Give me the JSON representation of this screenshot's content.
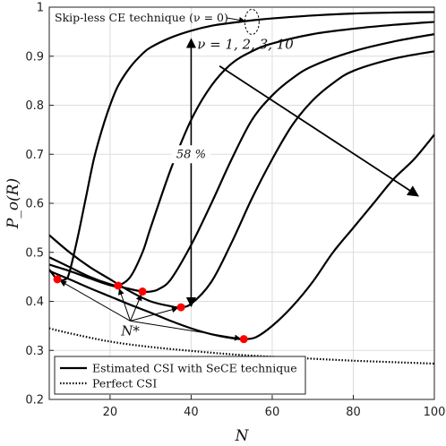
{
  "chart_data": {
    "type": "line",
    "xlabel": "N",
    "ylabel": "P_o(R)",
    "xlim": [
      5,
      100
    ],
    "ylim": [
      0.2,
      1.0
    ],
    "xticks": [
      20,
      40,
      60,
      80,
      100
    ],
    "yticks": [
      0.2,
      0.3,
      0.4,
      0.5,
      0.6,
      0.7,
      0.8,
      0.9,
      1.0
    ],
    "grid": true,
    "legend_position": "bottom-left",
    "series": [
      {
        "style": "solid",
        "x": [
          5,
          7,
          9,
          10,
          12,
          14,
          16,
          18,
          20,
          22,
          25,
          28,
          30,
          35,
          40,
          45,
          50,
          55,
          60,
          70,
          80,
          90,
          100
        ],
        "y": [
          0.465,
          0.445,
          0.445,
          0.46,
          0.53,
          0.61,
          0.69,
          0.75,
          0.8,
          0.84,
          0.878,
          0.905,
          0.918,
          0.938,
          0.952,
          0.962,
          0.968,
          0.973,
          0.977,
          0.983,
          0.987,
          0.989,
          0.99
        ]
      },
      {
        "style": "solid",
        "x": [
          5,
          10,
          15,
          20,
          22,
          25,
          28,
          30,
          35,
          40,
          45,
          50,
          55,
          60,
          70,
          80,
          90,
          100
        ],
        "y": [
          0.475,
          0.462,
          0.447,
          0.433,
          0.432,
          0.45,
          0.5,
          0.55,
          0.67,
          0.77,
          0.84,
          0.885,
          0.91,
          0.926,
          0.945,
          0.956,
          0.964,
          0.97
        ]
      },
      {
        "style": "solid",
        "x": [
          5,
          10,
          15,
          20,
          25,
          28,
          30,
          32,
          35,
          40,
          45,
          50,
          55,
          60,
          65,
          70,
          80,
          90,
          100
        ],
        "y": [
          0.49,
          0.47,
          0.45,
          0.435,
          0.425,
          0.42,
          0.42,
          0.425,
          0.445,
          0.515,
          0.6,
          0.69,
          0.77,
          0.82,
          0.855,
          0.88,
          0.91,
          0.93,
          0.945
        ]
      },
      {
        "style": "solid",
        "x": [
          5,
          10,
          15,
          20,
          25,
          30,
          35,
          37,
          40,
          45,
          50,
          55,
          60,
          65,
          70,
          75,
          80,
          90,
          100
        ],
        "y": [
          0.535,
          0.5,
          0.47,
          0.445,
          0.42,
          0.4,
          0.39,
          0.388,
          0.395,
          0.44,
          0.52,
          0.61,
          0.69,
          0.76,
          0.81,
          0.845,
          0.87,
          0.895,
          0.91
        ]
      },
      {
        "style": "solid",
        "x": [
          5,
          10,
          15,
          20,
          25,
          30,
          35,
          40,
          45,
          50,
          53,
          56,
          60,
          65,
          70,
          75,
          80,
          85,
          90,
          95,
          100
        ],
        "y": [
          0.462,
          0.445,
          0.427,
          0.41,
          0.393,
          0.377,
          0.36,
          0.345,
          0.333,
          0.325,
          0.323,
          0.327,
          0.35,
          0.39,
          0.44,
          0.5,
          0.55,
          0.6,
          0.65,
          0.69,
          0.74
        ]
      },
      {
        "style": "dotted",
        "x": [
          5,
          10,
          20,
          30,
          40,
          50,
          60,
          70,
          80,
          90,
          100
        ],
        "y": [
          0.345,
          0.335,
          0.318,
          0.307,
          0.299,
          0.292,
          0.287,
          0.283,
          0.279,
          0.276,
          0.273
        ]
      }
    ],
    "optimal_points": {
      "x": [
        7,
        22,
        28,
        37.5,
        53
      ],
      "y": [
        0.445,
        0.432,
        0.42,
        0.388,
        0.323
      ]
    },
    "annotations": {
      "skipless_label": "Skip-less CE technique (ν = 0)",
      "nu_label": "ν = 1, 2, 3, 10",
      "percent_label": "58 %",
      "nstar_label": "N*",
      "nstar_anchor": {
        "x": 25,
        "y": 0.36
      },
      "skipless_ellipse": {
        "x": 55,
        "y": 0.97
      },
      "percent_arrow": {
        "x": 40,
        "y_top": 0.935,
        "y_bottom": 0.39,
        "label_y": 0.7
      },
      "nu_arrow": {
        "x_start": 47,
        "y_start": 0.88,
        "x_end": 96,
        "y_end": 0.615
      }
    },
    "legend": [
      {
        "label": "Estimated CSI with SeCE technique",
        "style": "solid"
      },
      {
        "label": "Perfect CSI",
        "style": "dotted"
      }
    ]
  },
  "colors": {
    "line": "#000000",
    "marker": "#ff0000",
    "grid": "#dddddd"
  }
}
